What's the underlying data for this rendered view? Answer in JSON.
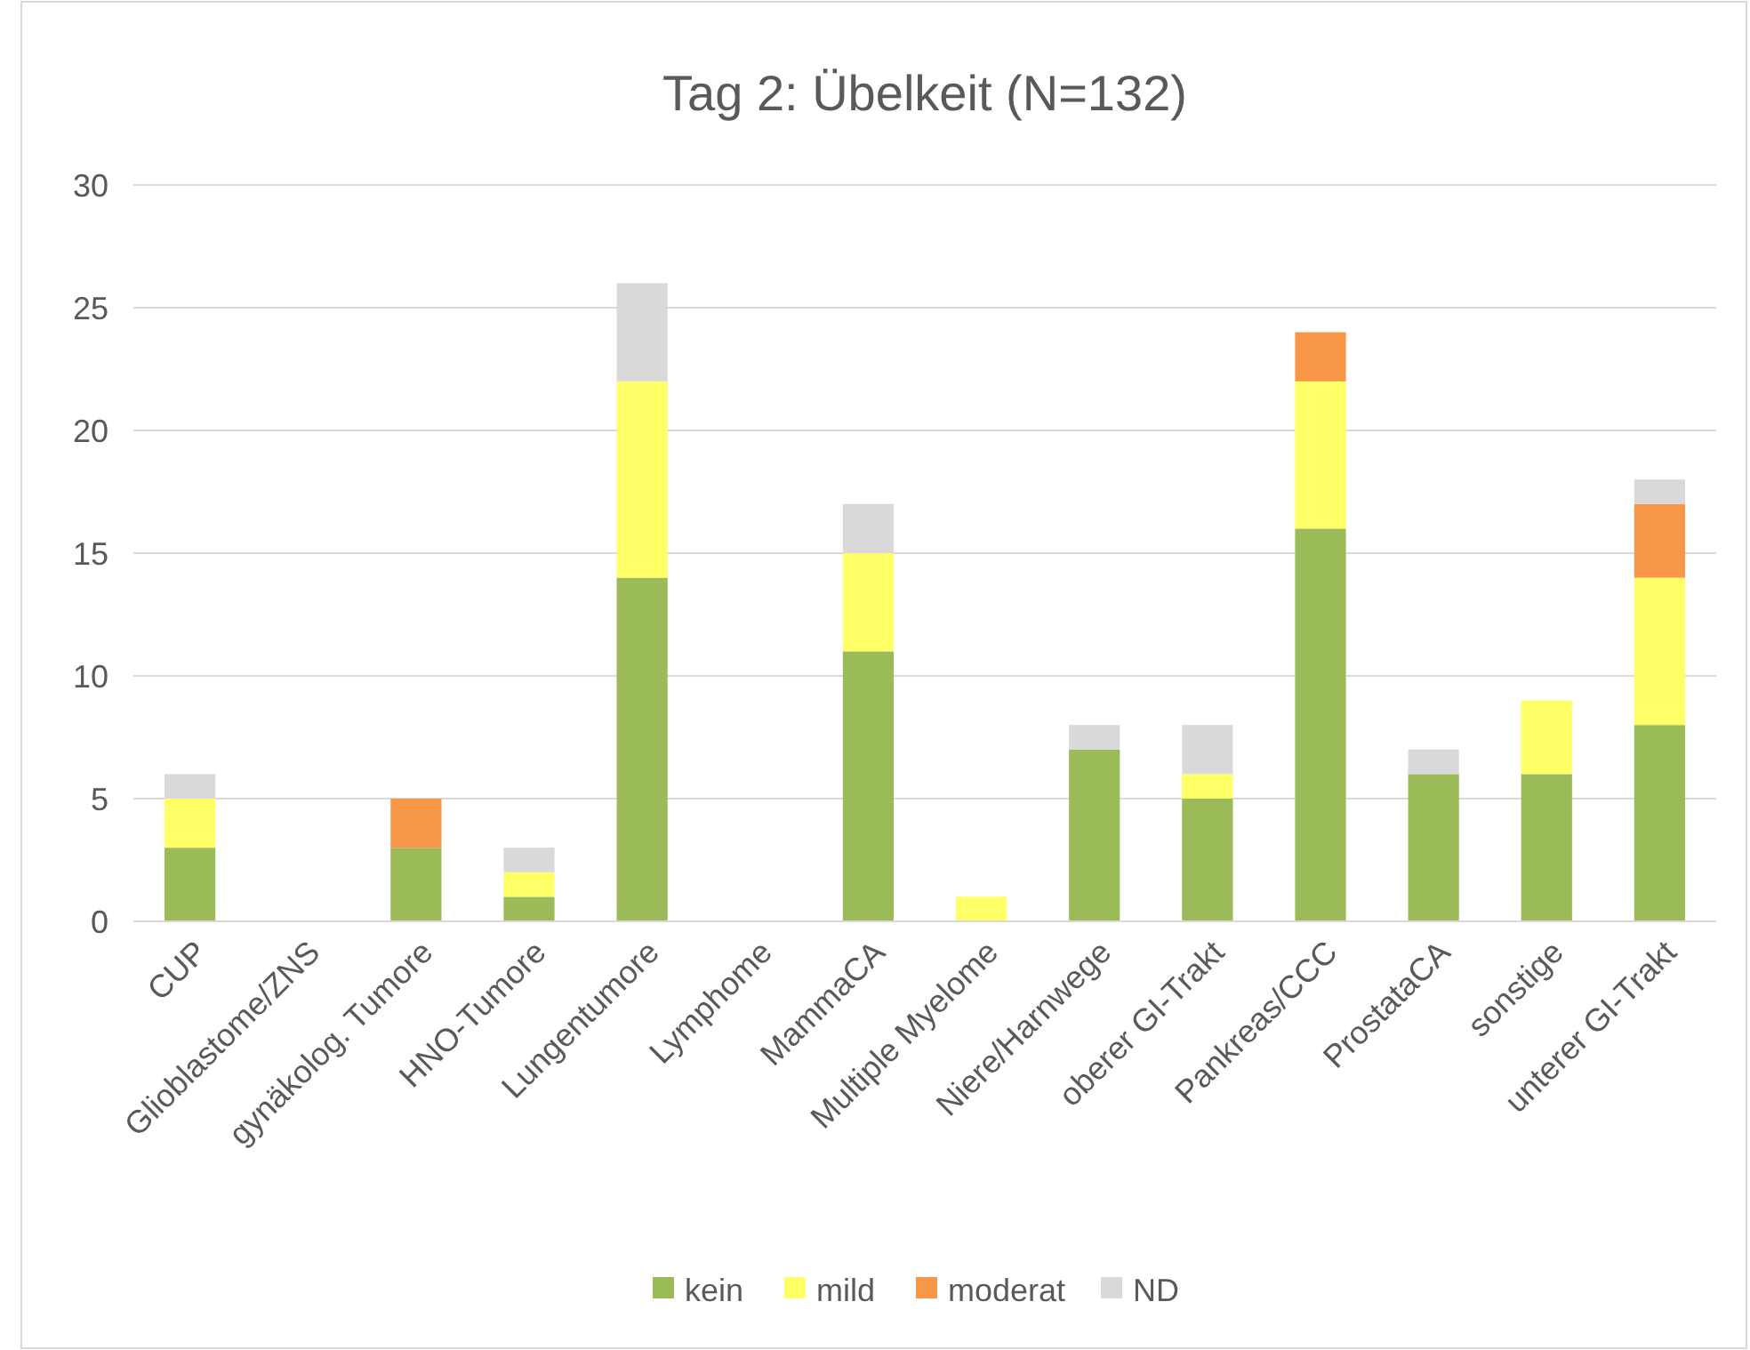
{
  "chart_data": {
    "type": "bar",
    "title": "Tag 2: Übelkeit (N=132)",
    "stacked": true,
    "categories": [
      "CUP",
      "Glioblastome/ZNS",
      "gynäkolog. Tumore",
      "HNO-Tumore",
      "Lungentumore",
      "Lymphome",
      "MammaCA",
      "Multiple Myelome",
      "Niere/Harnwege",
      "oberer GI-Trakt",
      "Pankreas/CCC",
      "ProstataCA",
      "sonstige",
      "unterer GI-Trakt"
    ],
    "series": [
      {
        "name": "kein",
        "color": "#9bbb59",
        "values": [
          3,
          0,
          3,
          1,
          14,
          0,
          11,
          0,
          7,
          5,
          16,
          6,
          6,
          8
        ]
      },
      {
        "name": "mild",
        "color": "#ffff66",
        "values": [
          2,
          0,
          0,
          1,
          8,
          0,
          4,
          1,
          0,
          1,
          6,
          0,
          3,
          6
        ]
      },
      {
        "name": "moderat",
        "color": "#f79646",
        "values": [
          0,
          0,
          2,
          0,
          0,
          0,
          0,
          0,
          0,
          0,
          2,
          0,
          0,
          3
        ]
      },
      {
        "name": "ND",
        "color": "#d9d9d9",
        "values": [
          1,
          0,
          0,
          1,
          4,
          0,
          2,
          0,
          1,
          2,
          0,
          1,
          0,
          1
        ]
      }
    ],
    "ylim": [
      0,
      30
    ],
    "yticks": [
      0,
      5,
      10,
      15,
      20,
      25,
      30
    ],
    "grid": "y",
    "legend": "bottom"
  }
}
